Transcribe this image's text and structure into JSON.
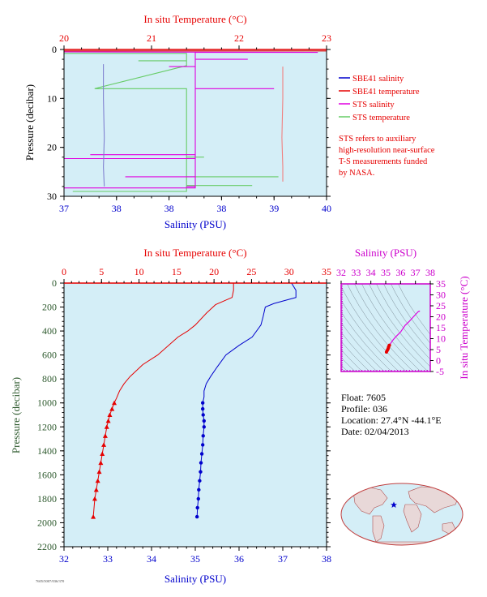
{
  "colors": {
    "plot_bg": "#d4eef7",
    "temp": "#e60000",
    "sal": "#0000cc",
    "sts_sal": "#e000e0",
    "sts_temp": "#66cc66",
    "sbe_temp_upper": "#f08080",
    "sbe_sal_upper": "#8080d0",
    "ts_axis": "#cc00cc",
    "pressure_label": "#2e5a2e"
  },
  "chart_data": [
    {
      "id": "upper",
      "type": "line",
      "title": "",
      "x_top": {
        "label": "In situ Temperature (°C)",
        "range": [
          20,
          23
        ],
        "ticks": [
          "20",
          "21",
          "22",
          "23"
        ]
      },
      "x_bottom": {
        "label": "Salinity (PSU)",
        "range": [
          37,
          40
        ],
        "ticks": [
          "37",
          "38",
          "38",
          "38",
          "39",
          "40"
        ],
        "tick_values": [
          37,
          37.6,
          38.2,
          38.8,
          39.4,
          40
        ]
      },
      "y": {
        "label": "Pressure (decibar)",
        "range": [
          0,
          30
        ],
        "ticks": [
          "0",
          "10",
          "20",
          "30"
        ],
        "inverted": true
      },
      "legend": {
        "placement": "right",
        "entries": [
          "SBE41 salinity",
          "SBE41 temperature",
          "STS salinity",
          "STS temperature"
        ],
        "note_lines": [
          "STS refers to auxiliary",
          "high-resolution near-surface",
          "T-S measurements funded",
          "by NASA."
        ]
      },
      "series": [
        {
          "name": "SBE41 salinity",
          "axis": "bottom",
          "x": [
            37.45,
            37.45,
            37.46,
            37.45,
            37.46
          ],
          "y": [
            3,
            10,
            18,
            24,
            28
          ]
        },
        {
          "name": "SBE41 temperature",
          "axis": "top",
          "x": [
            22.5,
            22.5,
            22.49,
            22.5,
            22.5
          ],
          "y": [
            3.5,
            10,
            18,
            24,
            27
          ]
        },
        {
          "name": "STS salinity",
          "axis": "bottom",
          "x": [
            37.0,
            39.9,
            38.5,
            38.5,
            39.1,
            38.5,
            38.5,
            38.2,
            38.5,
            38.5,
            39.4,
            38.5,
            38.5,
            37.3,
            38.5,
            38.5,
            37.0,
            38.5,
            38.5,
            37.7,
            38.5,
            38.5,
            38.4,
            38.5,
            38.5,
            37.0
          ],
          "y": [
            0.5,
            0.6,
            0.6,
            2.0,
            2.0,
            2.0,
            3.5,
            3.5,
            3.5,
            8.0,
            8.0,
            8.0,
            21.5,
            21.5,
            21.5,
            22.3,
            22.3,
            22.3,
            26.0,
            26.0,
            26.0,
            28.0,
            28.0,
            28.0,
            28.3,
            28.3
          ]
        },
        {
          "name": "STS temperature",
          "axis": "top",
          "x": [
            20.0,
            21.4,
            21.4,
            20.85,
            21.4,
            21.4,
            20.35,
            21.4,
            21.4,
            21.4,
            21.6,
            21.4,
            21.4,
            22.45,
            21.4,
            21.4,
            22.15,
            21.4,
            21.4,
            20.1
          ],
          "y": [
            0.8,
            0.8,
            2.3,
            2.3,
            2.3,
            3.3,
            8.0,
            8.0,
            20.0,
            22.0,
            22.0,
            22.0,
            26.0,
            26.0,
            26.0,
            27.8,
            27.8,
            27.8,
            29.0,
            29.0
          ]
        }
      ]
    },
    {
      "id": "lower",
      "type": "line",
      "title": "",
      "x_top": {
        "label": "In situ Temperature (°C)",
        "range": [
          0,
          35
        ],
        "ticks": [
          "0",
          "5",
          "10",
          "15",
          "20",
          "25",
          "30",
          "35"
        ]
      },
      "x_bottom": {
        "label": "Salinity (PSU)",
        "range": [
          32,
          38
        ],
        "ticks": [
          "32",
          "33",
          "34",
          "35",
          "36",
          "37",
          "38"
        ]
      },
      "y": {
        "label": "Pressure (decibar)",
        "range": [
          0,
          2200
        ],
        "ticks": [
          "0",
          "200",
          "400",
          "600",
          "800",
          "1000",
          "1200",
          "1400",
          "1600",
          "1800",
          "2000",
          "2200"
        ],
        "inverted": true
      },
      "series": [
        {
          "name": "Temperature",
          "axis": "top",
          "x": [
            22.6,
            22.6,
            22.4,
            20.2,
            19.0,
            17.5,
            16.5,
            15.2,
            12.5,
            10.5,
            9.5,
            8.8,
            8.0,
            7.4,
            7.0,
            6.7,
            6.4,
            6.1,
            5.9,
            5.7,
            5.5,
            5.3,
            5.1,
            4.9,
            4.7,
            4.5,
            4.3,
            4.1,
            3.9
          ],
          "y": [
            0,
            60,
            120,
            180,
            250,
            350,
            400,
            450,
            600,
            680,
            740,
            780,
            840,
            900,
            960,
            1000,
            1050,
            1100,
            1150,
            1200,
            1275,
            1350,
            1425,
            1500,
            1575,
            1650,
            1725,
            1800,
            1950
          ]
        },
        {
          "name": "Salinity",
          "axis": "bottom",
          "x": [
            37.2,
            37.3,
            37.3,
            36.8,
            36.6,
            36.55,
            36.5,
            36.3,
            36.0,
            35.7,
            35.5,
            35.35,
            35.25,
            35.2,
            35.2,
            35.17,
            35.17,
            35.18,
            35.2,
            35.2,
            35.18,
            35.17,
            35.15,
            35.13,
            35.12,
            35.1,
            35.08,
            35.07,
            35.05,
            35.04
          ],
          "y": [
            0,
            60,
            120,
            170,
            200,
            280,
            350,
            450,
            520,
            600,
            700,
            780,
            840,
            900,
            950,
            1000,
            1050,
            1100,
            1150,
            1200,
            1275,
            1350,
            1425,
            1500,
            1575,
            1650,
            1725,
            1800,
            1875,
            1950
          ]
        }
      ]
    },
    {
      "id": "ts",
      "type": "scatter",
      "title": "",
      "x_top": {
        "label": "Salinity (PSU)",
        "range": [
          32,
          38
        ],
        "ticks": [
          "32",
          "33",
          "34",
          "35",
          "36",
          "37",
          "38"
        ]
      },
      "y_right": {
        "label": "In situ Temperature (°C)",
        "range": [
          -5,
          35
        ],
        "ticks": [
          "-5",
          "0",
          "5",
          "10",
          "15",
          "20",
          "25",
          "30",
          "35"
        ]
      },
      "series": [
        {
          "name": "T-S",
          "x": [
            37.3,
            37.2,
            36.8,
            36.6,
            36.3,
            36.0,
            35.7,
            35.5,
            35.35,
            35.25,
            35.2,
            35.18,
            35.15,
            35.1,
            35.05
          ],
          "y": [
            22.6,
            22.4,
            19.5,
            18.0,
            16.0,
            13.0,
            11.0,
            9.5,
            8.0,
            7.0,
            6.4,
            5.8,
            5.2,
            4.6,
            3.9
          ]
        }
      ]
    }
  ],
  "float_info": {
    "float": "Float:  7605",
    "profile": "Profile:  036",
    "location": "Location:  27.4°N  -44.1°E",
    "date": "Date:  02/04/2013"
  },
  "map": {
    "marker_lat": 27.4,
    "marker_lon": -44.1,
    "marker_color": "#0000cc"
  },
  "footer": {
    "code": "7605/5007/036/370"
  }
}
